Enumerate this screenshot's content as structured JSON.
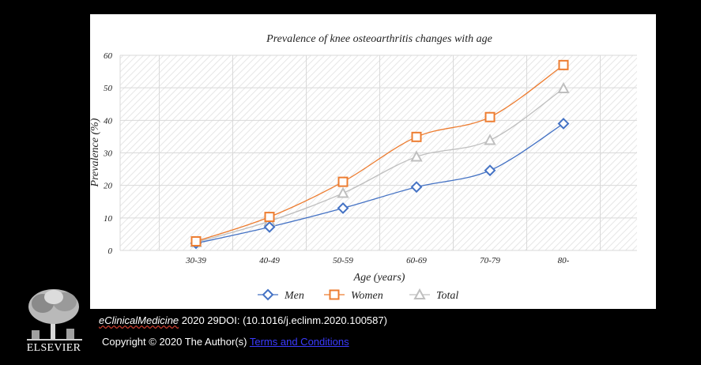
{
  "chart_data": {
    "type": "line",
    "title": "Prevalence of knee osteoarthritis changes with age",
    "xlabel": "Age (years)",
    "ylabel": "Prevalence (%)",
    "categories": [
      "30-39",
      "40-49",
      "50-59",
      "60-69",
      "70-79",
      "80-"
    ],
    "ylim": [
      0,
      60
    ],
    "yticks": [
      0,
      10,
      20,
      30,
      40,
      50,
      60
    ],
    "grid": true,
    "legend_position": "bottom",
    "series": [
      {
        "name": "Men",
        "values": [
          2.2,
          7.2,
          13,
          19.5,
          24.6,
          39
        ],
        "color": "#4472C4",
        "marker": "diamond"
      },
      {
        "name": "Women",
        "values": [
          2.8,
          10.3,
          21.1,
          34.9,
          41,
          57
        ],
        "color": "#ED7D31",
        "marker": "square"
      },
      {
        "name": "Total",
        "values": [
          2.5,
          9,
          17.6,
          28.8,
          33.9,
          49.8
        ],
        "color": "#BFBFBF",
        "marker": "triangle"
      }
    ]
  },
  "footer": {
    "logo_text": "ELSEVIER",
    "citation_journal": "eClinicalMedicine",
    "citation_rest": " 2020 29DOI: (10.1016/j.eclinm.2020.100587)",
    "copyright_text": "Copyright © 2020 The Author(s) ",
    "terms_link": "Terms and Conditions"
  }
}
